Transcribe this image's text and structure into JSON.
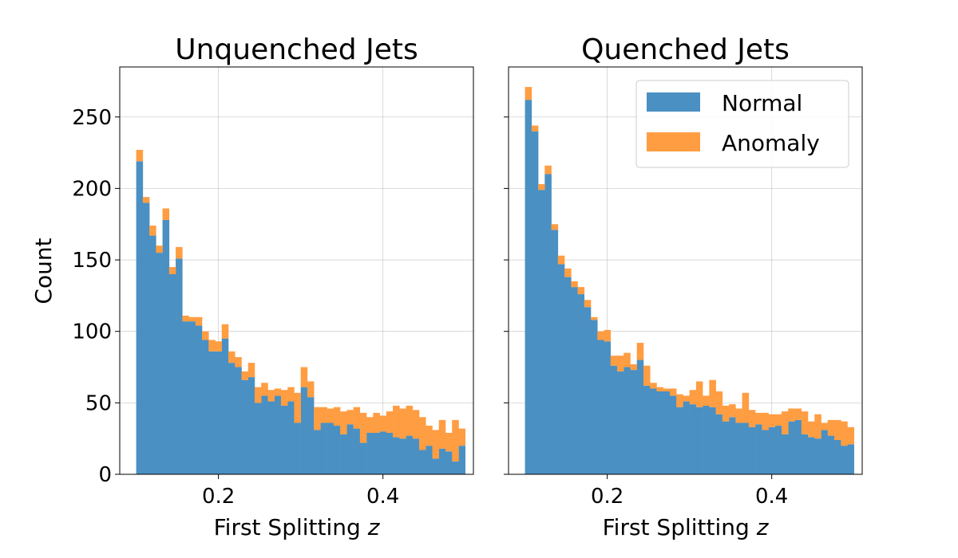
{
  "colors": {
    "normal": "#4a90c2",
    "anomaly": "#ff9d42"
  },
  "chart_data": [
    {
      "type": "bar",
      "stacked": true,
      "title": "Unquenched Jets",
      "xlabel": "First Splitting z",
      "ylabel": "Count",
      "xlim": [
        0.08,
        0.51
      ],
      "ylim": [
        0,
        285
      ],
      "xticks": [
        0.2,
        0.4
      ],
      "xtick_labels": [
        "0.2",
        "0.4"
      ],
      "yticks": [
        0,
        50,
        100,
        150,
        200,
        250
      ],
      "ytick_labels": [
        "0",
        "50",
        "100",
        "150",
        "200",
        "250"
      ],
      "grid": true,
      "bins": {
        "start": 0.1,
        "end": 0.5,
        "count": 50
      },
      "series": [
        {
          "name": "Normal",
          "values": [
            219,
            190,
            167,
            155,
            178,
            140,
            151,
            107,
            107,
            104,
            94,
            86,
            86,
            95,
            78,
            75,
            66,
            68,
            50,
            55,
            51,
            55,
            48,
            51,
            36,
            61,
            54,
            31,
            36,
            36,
            34,
            28,
            35,
            32,
            22,
            29,
            29,
            30,
            29,
            26,
            25,
            27,
            25,
            17,
            20,
            11,
            18,
            16,
            9,
            20
          ]
        },
        {
          "name": "Anomaly",
          "values": [
            8,
            4,
            7,
            5,
            8,
            5,
            8,
            4,
            3,
            6,
            6,
            8,
            7,
            10,
            8,
            7,
            6,
            10,
            11,
            9,
            8,
            5,
            11,
            10,
            21,
            14,
            11,
            16,
            11,
            10,
            13,
            16,
            10,
            15,
            21,
            11,
            14,
            11,
            15,
            22,
            21,
            21,
            20,
            23,
            14,
            20,
            20,
            13,
            29,
            12
          ]
        }
      ]
    },
    {
      "type": "bar",
      "stacked": true,
      "title": "Quenched Jets",
      "xlabel": "First Splitting z",
      "ylabel": "",
      "xlim": [
        0.08,
        0.51
      ],
      "ylim": [
        0,
        285
      ],
      "xticks": [
        0.2,
        0.4
      ],
      "xtick_labels": [
        "0.2",
        "0.4"
      ],
      "yticks": [
        0,
        50,
        100,
        150,
        200,
        250
      ],
      "ytick_labels": [
        "",
        "",
        "",
        "",
        "",
        ""
      ],
      "grid": true,
      "legend": {
        "position": "top-right",
        "entries": [
          "Normal",
          "Anomaly"
        ]
      },
      "bins": {
        "start": 0.1,
        "end": 0.5,
        "count": 50
      },
      "series": [
        {
          "name": "Normal",
          "values": [
            262,
            240,
            199,
            210,
            171,
            147,
            138,
            131,
            126,
            117,
            108,
            94,
            93,
            76,
            72,
            75,
            73,
            80,
            62,
            60,
            58,
            58,
            55,
            47,
            51,
            49,
            47,
            48,
            47,
            42,
            37,
            40,
            36,
            36,
            33,
            35,
            31,
            33,
            34,
            28,
            37,
            38,
            28,
            26,
            25,
            31,
            27,
            24,
            20,
            21
          ]
        },
        {
          "name": "Anomaly",
          "values": [
            9,
            4,
            4,
            6,
            4,
            6,
            6,
            4,
            5,
            5,
            2,
            6,
            8,
            7,
            11,
            10,
            4,
            12,
            14,
            4,
            3,
            2,
            5,
            9,
            4,
            10,
            18,
            7,
            19,
            16,
            11,
            9,
            10,
            21,
            12,
            8,
            12,
            9,
            8,
            16,
            9,
            8,
            16,
            11,
            17,
            5,
            11,
            14,
            17,
            12
          ]
        }
      ]
    }
  ]
}
